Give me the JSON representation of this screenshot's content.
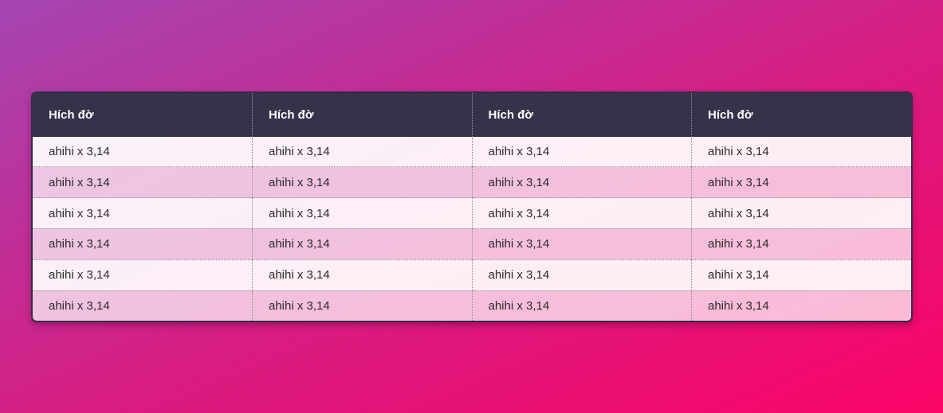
{
  "page": {
    "background_gradient": {
      "direction": "to bottom right",
      "start": "#a445b1",
      "end": "#fb0467"
    }
  },
  "table": {
    "headers": [
      "Hích đờ",
      "Hích đờ",
      "Hích đờ",
      "Hích đờ"
    ],
    "rows": [
      [
        "ahihi x 3,14",
        "ahihi x 3,14",
        "ahihi x 3,14",
        "ahihi x 3,14"
      ],
      [
        "ahihi x 3,14",
        "ahihi x 3,14",
        "ahihi x 3,14",
        "ahihi x 3,14"
      ],
      [
        "ahihi x 3,14",
        "ahihi x 3,14",
        "ahihi x 3,14",
        "ahihi x 3,14"
      ],
      [
        "ahihi x 3,14",
        "ahihi x 3,14",
        "ahihi x 3,14",
        "ahihi x 3,14"
      ],
      [
        "ahihi x 3,14",
        "ahihi x 3,14",
        "ahihi x 3,14",
        "ahihi x 3,14"
      ],
      [
        "ahihi x 3,14",
        "ahihi x 3,14",
        "ahihi x 3,14",
        "ahihi x 3,14"
      ]
    ],
    "colors": {
      "header_bg": "#373149",
      "header_text": "#ffffff",
      "row_odd_bg": "rgba(255,255,255,0.93)",
      "row_even_bg": "rgba(255,255,255,0.72)",
      "body_text": "#2b2b2b",
      "border": "#332d47",
      "dotted_divider": "#8d8d8d"
    }
  }
}
